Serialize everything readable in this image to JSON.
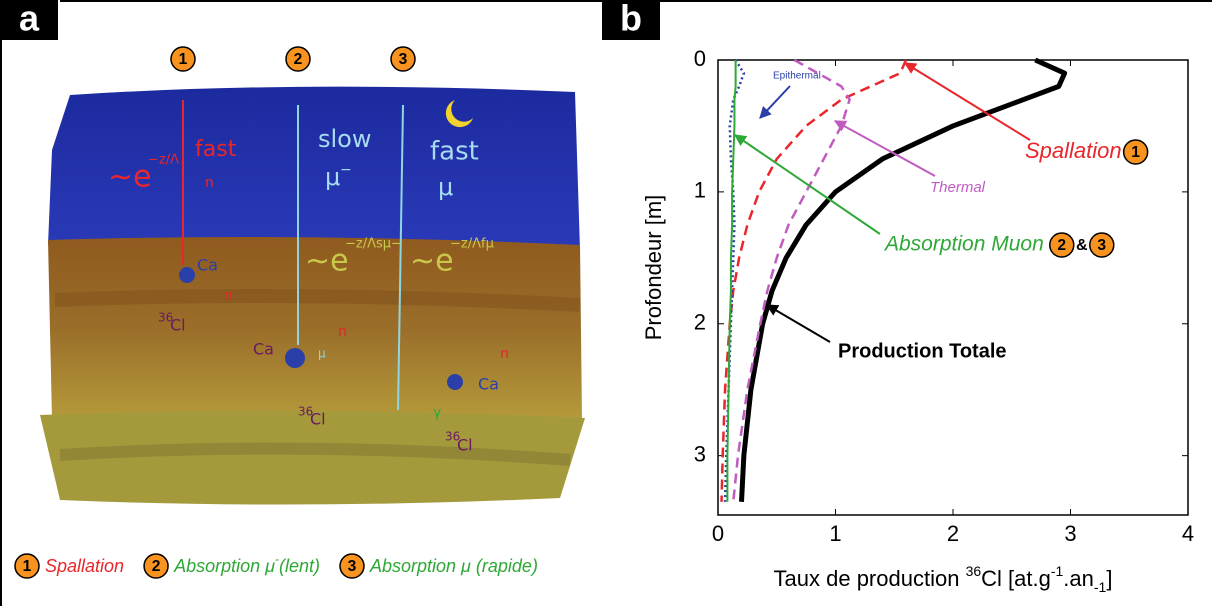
{
  "panel_a": {
    "label": "a",
    "markers": [
      "1",
      "2",
      "3"
    ],
    "hand_labels": [
      "fast",
      "n",
      "slow",
      "μ",
      "−",
      "fast",
      "μ",
      "Ca",
      "n",
      "36",
      "Cl",
      "Ca",
      "n",
      "μ",
      "36",
      "Cl",
      "γ",
      "Ca",
      "n",
      "36",
      "Cl"
    ],
    "formulas": [
      {
        "base": "∼e",
        "exponent": "−z/Λ"
      },
      {
        "base": "∼e",
        "exponent": "−z/Λsμ−"
      },
      {
        "base": "∼e",
        "exponent": "−z/Λfμ"
      }
    ],
    "legend": [
      {
        "number": "1",
        "text": "Spallation"
      },
      {
        "number": "2",
        "text": "Absorption μ",
        "sup": "-",
        "after": "(lent)"
      },
      {
        "number": "3",
        "text": "Absorption μ (rapide)"
      }
    ]
  },
  "chart_data": {
    "type": "line",
    "panel_label": "b",
    "y_label": "Profondeur [m]",
    "x_label": [
      "Taux de production ",
      "36",
      "Cl [at.g",
      "-1",
      ".an",
      "-1",
      "]"
    ],
    "xlim": [
      0,
      4
    ],
    "xticks": [
      0,
      1,
      2,
      3,
      4
    ],
    "ylim": [
      0,
      3.45
    ],
    "yticks": [
      0,
      1,
      2,
      3
    ],
    "y_inverted": true,
    "depth": [
      0,
      0.1,
      0.2,
      0.3,
      0.5,
      0.75,
      1.0,
      1.25,
      1.5,
      1.75,
      2.0,
      2.5,
      3.0,
      3.35
    ],
    "series": [
      {
        "name": "Production Totale",
        "color": "#000000",
        "dash": "solid",
        "width": 5,
        "values": [
          2.7,
          2.95,
          2.9,
          2.6,
          2.0,
          1.4,
          1.0,
          0.75,
          0.58,
          0.46,
          0.38,
          0.28,
          0.22,
          0.2
        ]
      },
      {
        "name": "Spallation",
        "color": "#e8262b",
        "dash": "dashed",
        "width": 2.5,
        "values": [
          1.6,
          1.55,
          1.3,
          1.05,
          0.75,
          0.5,
          0.35,
          0.25,
          0.18,
          0.13,
          0.1,
          0.06,
          0.04,
          0.03
        ]
      },
      {
        "name": "Thermal",
        "color": "#c05cc0",
        "dash": "dashed",
        "width": 2.5,
        "values": [
          0.65,
          0.85,
          1.05,
          1.12,
          1.05,
          0.9,
          0.75,
          0.6,
          0.5,
          0.42,
          0.36,
          0.25,
          0.17,
          0.13
        ]
      },
      {
        "name": "Epithermal",
        "color": "#2b3fa8",
        "dash": "dotted",
        "width": 2.5,
        "values": [
          0.15,
          0.22,
          0.18,
          0.13,
          0.1,
          0.11,
          0.13,
          0.14,
          0.13,
          0.12,
          0.11,
          0.09,
          0.07,
          0.06
        ]
      },
      {
        "name": "Absorption Muon",
        "color": "#2ea836",
        "dash": "solid",
        "width": 2,
        "values": [
          0.15,
          0.15,
          0.15,
          0.14,
          0.14,
          0.13,
          0.12,
          0.12,
          0.11,
          0.11,
          0.1,
          0.09,
          0.08,
          0.08
        ]
      }
    ],
    "badges": [
      "1",
      "2",
      "3"
    ],
    "badge_joiner": "&"
  }
}
